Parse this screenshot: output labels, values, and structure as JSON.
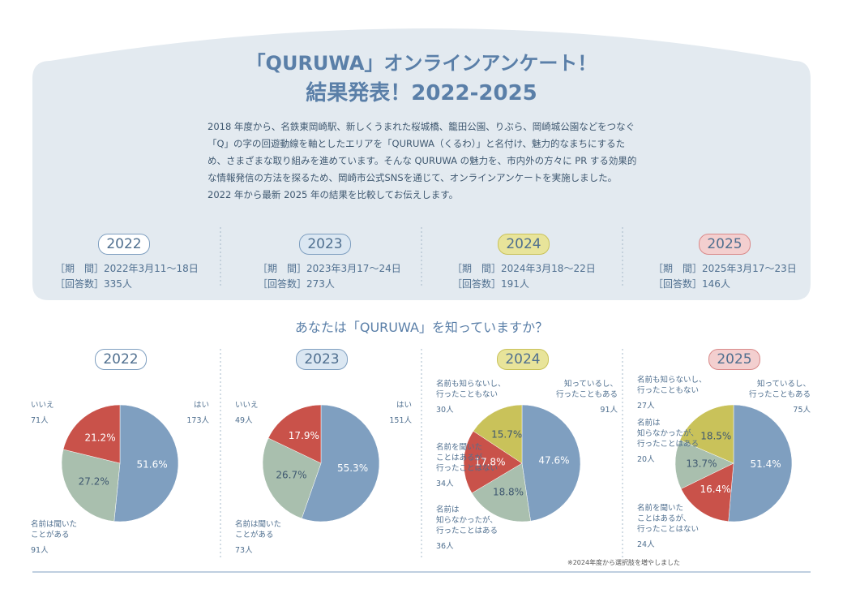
{
  "header": {
    "title_line1": "「QURUWA」オンラインアンケート！",
    "title_line2": "結果発表！2022-2025",
    "description": "2018 年度から、名鉄東岡崎駅、新しくうまれた桜城橋、籠田公園、りぶら、岡崎城公園などをつなぐ「Q」の字の回遊動線を軸としたエリアを「QURUWA（くるわ）」と名付け、魅力的なまちにするため、さまざまな取り組みを進めています。そんな QURUWA の魅力を、市内外の方々に PR する効果的な情報発信の方法を探るため、岡崎市公式SNSを通じて、オンラインアンケートを実施しました。2022 年から最新 2025 年の結果を比較してお伝えします。"
  },
  "survey_labels": {
    "period": "［期　間］",
    "respondents": "［回答数］"
  },
  "surveys": [
    {
      "year": "2022",
      "period": "2022年3月11〜18日",
      "respondents": "335人"
    },
    {
      "year": "2023",
      "period": "2023年3月17〜24日",
      "respondents": "273人"
    },
    {
      "year": "2024",
      "period": "2024年3月18〜22日",
      "respondents": "191人"
    },
    {
      "year": "2025",
      "period": "2025年3月17〜23日",
      "respondents": "146人"
    }
  ],
  "question": "あなたは「QURUWA」を知っていますか？",
  "chart_data": [
    {
      "type": "pie",
      "title": "2022",
      "categories": [
        "はい",
        "名前は聞いた\nことがある",
        "いいえ"
      ],
      "values": [
        51.6,
        27.2,
        21.2
      ],
      "value_labels": [
        "51.6%",
        "27.2%",
        "21.2%"
      ],
      "counts": [
        "173人",
        "91人",
        "71人"
      ],
      "colors": [
        "#7f9fc0",
        "#a9bfae",
        "#c9524a"
      ]
    },
    {
      "type": "pie",
      "title": "2023",
      "categories": [
        "はい",
        "名前は聞いた\nことがある",
        "いいえ"
      ],
      "values": [
        55.3,
        26.7,
        17.9
      ],
      "value_labels": [
        "55.3%",
        "26.7%",
        "17.9%"
      ],
      "counts": [
        "151人",
        "73人",
        "49人"
      ],
      "colors": [
        "#7f9fc0",
        "#a9bfae",
        "#c9524a"
      ]
    },
    {
      "type": "pie",
      "title": "2024",
      "categories": [
        "知っているし、\n行ったこともある",
        "名前は\n知らなかったが、\n行ったことはある",
        "名前を聞いた\nことはあるが、\n行ったことはない",
        "名前も知らないし、\n行ったこともない"
      ],
      "values": [
        47.6,
        18.8,
        17.8,
        15.7
      ],
      "value_labels": [
        "47.6%",
        "18.8%",
        "17.8%",
        "15.7%"
      ],
      "counts": [
        "91人",
        "36人",
        "34人",
        "30人"
      ],
      "colors": [
        "#7f9fc0",
        "#a9bfae",
        "#c9524a",
        "#c9c25a"
      ]
    },
    {
      "type": "pie",
      "title": "2025",
      "categories": [
        "知っているし、\n行ったこともある",
        "名前を聞いた\nことはあるが、\n行ったことはない",
        "名前は\n知らなかったが、\n行ったことはある",
        "名前も知らないし、\n行ったこともない"
      ],
      "values": [
        51.4,
        16.4,
        13.7,
        18.5
      ],
      "value_labels": [
        "51.4%",
        "16.4%",
        "13.7%",
        "18.5%"
      ],
      "counts": [
        "75人",
        "24人",
        "20人",
        "27人"
      ],
      "colors": [
        "#7f9fc0",
        "#c9524a",
        "#a9bfae",
        "#c9c25a"
      ]
    }
  ],
  "note": "※2024年度から選択肢を増やしました"
}
